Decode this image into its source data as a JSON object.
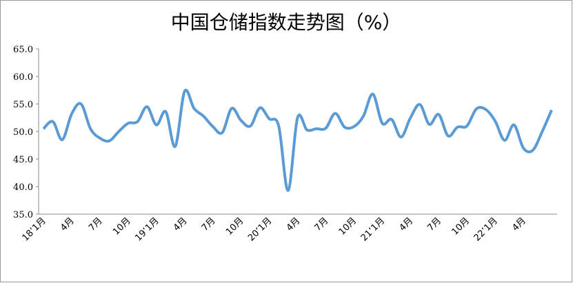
{
  "chart_data": {
    "type": "line",
    "title": "中国仓储指数走势图（%）",
    "categories": [
      "18’1月",
      null,
      null,
      "4月",
      null,
      null,
      "7月",
      null,
      null,
      "10月",
      null,
      null,
      "19’1月",
      null,
      null,
      "4月",
      null,
      null,
      "7月",
      null,
      null,
      "10月",
      null,
      null,
      "20’1月",
      null,
      null,
      "4月",
      null,
      null,
      "7月",
      null,
      null,
      "10月",
      null,
      null,
      "21’1月",
      null,
      null,
      "4月",
      null,
      null,
      "7月",
      null,
      null,
      "10月",
      null,
      null,
      "22’1月",
      null,
      null,
      "4月",
      null,
      null,
      null
    ],
    "series": [
      {
        "name": "中国仓储指数",
        "color": "#5b9bd5",
        "values": [
          50.5,
          51.8,
          48.5,
          53.2,
          55.0,
          50.5,
          48.8,
          48.3,
          50.0,
          51.5,
          51.8,
          54.5,
          51.2,
          53.6,
          47.3,
          57.3,
          54.2,
          52.8,
          50.9,
          49.8,
          54.2,
          52.0,
          51.0,
          54.3,
          52.3,
          51.0,
          39.3,
          52.5,
          50.3,
          50.5,
          50.6,
          53.3,
          50.8,
          50.9,
          52.8,
          56.8,
          51.5,
          52.2,
          49.0,
          52.5,
          54.9,
          51.3,
          53.1,
          49.2,
          50.8,
          51.0,
          54.1,
          54.0,
          51.9,
          48.4,
          51.2,
          47.0,
          46.6,
          50.0,
          53.9
        ]
      }
    ],
    "ylim": [
      35,
      65
    ],
    "yticks": [
      {
        "value": 35,
        "label": "35.0"
      },
      {
        "value": 40,
        "label": "40.0"
      },
      {
        "value": 45,
        "label": "45.0"
      },
      {
        "value": 50,
        "label": "50.0"
      },
      {
        "value": 55,
        "label": "55.0"
      },
      {
        "value": 60,
        "label": "60.0"
      },
      {
        "value": 65,
        "label": "65.0"
      }
    ],
    "grid": false
  }
}
